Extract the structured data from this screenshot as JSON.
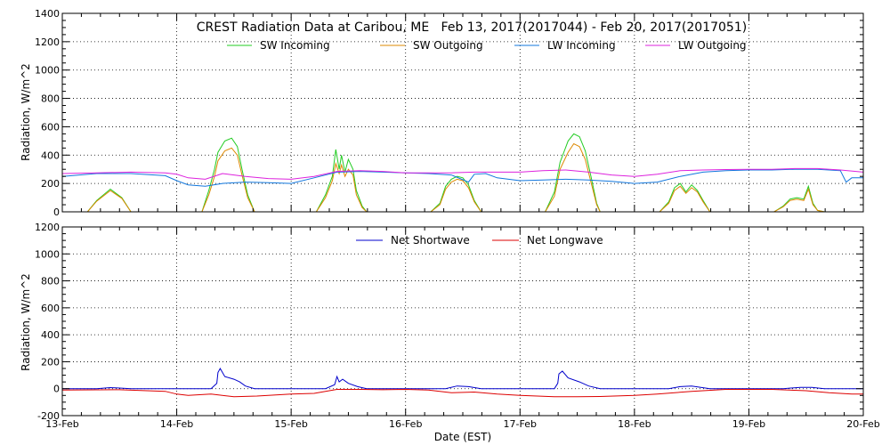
{
  "chart_data": [
    {
      "type": "line",
      "title": "CREST Radiation Data at Caribou, ME   Feb 13, 2017(2017044) - Feb 20, 2017(2017051)",
      "xlabel": "",
      "ylabel": "Radiation, W/m^2",
      "xlim": [
        0,
        7
      ],
      "ylim": [
        0,
        1400
      ],
      "yticks": [
        0,
        200,
        400,
        600,
        800,
        1000,
        1200,
        1400
      ],
      "grid": true,
      "legend": "top",
      "series": [
        {
          "name": "SW Incoming",
          "color": "#22cc22",
          "x": [
            0.0,
            0.22,
            0.3,
            0.42,
            0.52,
            0.6,
            1.0,
            1.22,
            1.28,
            1.33,
            1.36,
            1.42,
            1.48,
            1.53,
            1.57,
            1.62,
            1.68,
            1.7,
            2.0,
            2.22,
            2.3,
            2.36,
            2.39,
            2.42,
            2.44,
            2.47,
            2.5,
            2.54,
            2.57,
            2.62,
            2.66,
            3.0,
            3.22,
            3.3,
            3.35,
            3.4,
            3.45,
            3.5,
            3.55,
            3.6,
            3.66,
            4.0,
            4.22,
            4.3,
            4.35,
            4.42,
            4.47,
            4.52,
            4.57,
            4.62,
            4.67,
            4.7,
            5.0,
            5.22,
            5.3,
            5.35,
            5.4,
            5.45,
            5.5,
            5.55,
            5.6,
            5.66,
            6.0,
            6.22,
            6.3,
            6.36,
            6.42,
            6.48,
            6.52,
            6.56,
            6.6,
            6.66,
            7.0
          ],
          "values": [
            0,
            0,
            80,
            160,
            100,
            0,
            0,
            0,
            150,
            300,
            420,
            500,
            520,
            460,
            300,
            120,
            0,
            0,
            0,
            0,
            120,
            250,
            440,
            300,
            400,
            280,
            370,
            300,
            150,
            40,
            0,
            0,
            0,
            60,
            180,
            230,
            250,
            240,
            190,
            80,
            0,
            0,
            0,
            140,
            350,
            500,
            550,
            530,
            430,
            250,
            60,
            0,
            0,
            0,
            70,
            170,
            200,
            140,
            190,
            150,
            80,
            0,
            0,
            0,
            40,
            90,
            100,
            90,
            180,
            60,
            10,
            0,
            0
          ]
        },
        {
          "name": "SW Outgoing",
          "color": "#dd8800",
          "x": [
            0.0,
            0.22,
            0.3,
            0.42,
            0.52,
            0.6,
            1.0,
            1.22,
            1.28,
            1.33,
            1.36,
            1.42,
            1.48,
            1.53,
            1.57,
            1.62,
            1.68,
            1.7,
            2.0,
            2.22,
            2.3,
            2.36,
            2.39,
            2.42,
            2.44,
            2.47,
            2.5,
            2.54,
            2.57,
            2.62,
            2.66,
            3.0,
            3.22,
            3.3,
            3.35,
            3.4,
            3.45,
            3.5,
            3.55,
            3.6,
            3.66,
            4.0,
            4.22,
            4.3,
            4.35,
            4.42,
            4.47,
            4.52,
            4.57,
            4.62,
            4.67,
            4.7,
            5.0,
            5.22,
            5.3,
            5.35,
            5.4,
            5.45,
            5.5,
            5.55,
            5.6,
            5.66,
            6.0,
            6.22,
            6.3,
            6.36,
            6.42,
            6.48,
            6.52,
            6.56,
            6.6,
            6.66,
            7.0
          ],
          "values": [
            0,
            0,
            75,
            150,
            95,
            0,
            0,
            0,
            120,
            250,
            360,
            430,
            450,
            400,
            260,
            100,
            0,
            0,
            0,
            0,
            100,
            220,
            340,
            270,
            330,
            250,
            300,
            260,
            120,
            30,
            0,
            0,
            0,
            50,
            160,
            210,
            230,
            220,
            170,
            70,
            0,
            0,
            0,
            110,
            300,
            420,
            480,
            460,
            370,
            210,
            50,
            0,
            0,
            0,
            60,
            150,
            180,
            130,
            170,
            140,
            70,
            0,
            0,
            0,
            35,
            80,
            90,
            80,
            160,
            50,
            10,
            0,
            0
          ]
        },
        {
          "name": "LW Incoming",
          "color": "#1177dd",
          "x": [
            0.0,
            0.3,
            0.6,
            0.9,
            1.0,
            1.1,
            1.25,
            1.4,
            1.6,
            1.8,
            2.0,
            2.2,
            2.4,
            2.6,
            2.8,
            3.0,
            3.2,
            3.4,
            3.55,
            3.6,
            3.7,
            3.8,
            4.0,
            4.2,
            4.4,
            4.6,
            4.8,
            5.0,
            5.2,
            5.4,
            5.6,
            5.8,
            6.0,
            6.2,
            6.4,
            6.6,
            6.8,
            6.85,
            6.9,
            7.0
          ],
          "values": [
            250,
            270,
            270,
            255,
            220,
            190,
            180,
            200,
            210,
            205,
            200,
            240,
            280,
            285,
            280,
            275,
            270,
            260,
            210,
            265,
            270,
            240,
            220,
            225,
            230,
            225,
            215,
            200,
            210,
            250,
            280,
            290,
            295,
            295,
            300,
            300,
            290,
            210,
            240,
            240
          ]
        },
        {
          "name": "LW Outgoing",
          "color": "#dd22dd",
          "x": [
            0.0,
            0.3,
            0.6,
            0.9,
            1.0,
            1.1,
            1.25,
            1.4,
            1.6,
            1.8,
            2.0,
            2.2,
            2.4,
            2.6,
            2.8,
            3.0,
            3.2,
            3.4,
            3.6,
            3.8,
            4.0,
            4.2,
            4.4,
            4.6,
            4.8,
            5.0,
            5.2,
            5.4,
            5.6,
            5.8,
            6.0,
            6.2,
            6.4,
            6.6,
            6.8,
            7.0
          ],
          "values": [
            270,
            275,
            280,
            275,
            265,
            240,
            230,
            270,
            250,
            235,
            230,
            250,
            285,
            290,
            285,
            275,
            275,
            275,
            280,
            280,
            280,
            290,
            295,
            280,
            260,
            250,
            265,
            290,
            295,
            298,
            300,
            300,
            305,
            305,
            295,
            280
          ]
        }
      ]
    },
    {
      "type": "line",
      "title": "",
      "xlabel": "Date (EST)",
      "ylabel": "Radiation, W/m^2",
      "xlim": [
        0,
        7
      ],
      "ylim": [
        -200,
        1200
      ],
      "yticks": [
        -200,
        0,
        200,
        400,
        600,
        800,
        1000,
        1200
      ],
      "xticks": [
        "13-Feb",
        "14-Feb",
        "15-Feb",
        "16-Feb",
        "17-Feb",
        "18-Feb",
        "19-Feb",
        "20-Feb"
      ],
      "grid": true,
      "legend": "top",
      "series": [
        {
          "name": "Net Shortwave",
          "color": "#0000cc",
          "x": [
            0.0,
            0.3,
            0.42,
            0.5,
            0.6,
            1.0,
            1.3,
            1.35,
            1.36,
            1.38,
            1.42,
            1.5,
            1.55,
            1.6,
            1.68,
            2.0,
            2.3,
            2.38,
            2.4,
            2.42,
            2.45,
            2.5,
            2.58,
            2.66,
            3.0,
            3.35,
            3.45,
            3.55,
            3.66,
            4.0,
            4.3,
            4.33,
            4.34,
            4.37,
            4.42,
            4.52,
            4.6,
            4.7,
            5.0,
            5.3,
            5.4,
            5.5,
            5.66,
            6.0,
            6.3,
            6.45,
            6.55,
            6.66,
            7.0
          ],
          "values": [
            0,
            0,
            8,
            5,
            0,
            0,
            0,
            40,
            120,
            150,
            90,
            70,
            50,
            20,
            0,
            0,
            0,
            30,
            90,
            50,
            70,
            40,
            15,
            0,
            0,
            0,
            20,
            15,
            0,
            0,
            0,
            40,
            110,
            130,
            80,
            50,
            20,
            0,
            0,
            0,
            15,
            20,
            0,
            0,
            0,
            10,
            10,
            0,
            0
          ]
        },
        {
          "name": "Net Longwave",
          "color": "#dd0000",
          "x": [
            0.0,
            0.5,
            0.9,
            1.0,
            1.1,
            1.3,
            1.5,
            1.7,
            1.9,
            2.0,
            2.2,
            2.3,
            2.4,
            2.5,
            2.6,
            2.8,
            3.0,
            3.2,
            3.4,
            3.6,
            3.8,
            4.0,
            4.3,
            4.5,
            4.7,
            5.0,
            5.2,
            5.5,
            5.8,
            6.0,
            6.2,
            6.5,
            6.7,
            6.9,
            7.0
          ],
          "values": [
            -10,
            -8,
            -20,
            -40,
            -50,
            -40,
            -60,
            -55,
            -45,
            -40,
            -35,
            -20,
            -5,
            -5,
            -5,
            -8,
            -5,
            -10,
            -30,
            -25,
            -40,
            -50,
            -60,
            -60,
            -58,
            -50,
            -40,
            -20,
            -5,
            -5,
            -5,
            -15,
            -30,
            -40,
            -40
          ]
        }
      ]
    }
  ]
}
